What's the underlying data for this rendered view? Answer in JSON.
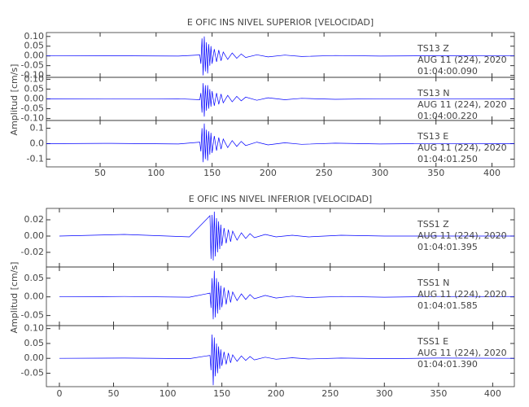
{
  "chart_data": [
    {
      "type": "line",
      "title": "E OFIC INS NIVEL SUPERIOR [VELOCIDAD]",
      "y_label": "Amplitud [cm/s]",
      "xlim": [
        2,
        420
      ],
      "xticks": [
        50,
        100,
        150,
        200,
        250,
        300,
        350,
        400
      ],
      "x": [
        2,
        60,
        120,
        139,
        140,
        141,
        142,
        143,
        144,
        145,
        146,
        147,
        148,
        149,
        150,
        152,
        154,
        156,
        158,
        160,
        164,
        168,
        172,
        176,
        180,
        190,
        200,
        215,
        230,
        260,
        300,
        350,
        420
      ],
      "series": [
        {
          "name": "TS13   Z",
          "date": "AUG 11 (224), 2020",
          "time": "01:04:00.090",
          "color": "#0000ff",
          "ylim": [
            -0.11,
            0.12
          ],
          "yticks": [
            {
              "value": 0.1,
              "label": "0.10"
            },
            0.05,
            {
              "value": 0,
              "label": "0.00"
            },
            -0.05,
            {
              "value": -0.1,
              "label": "-0.10"
            }
          ],
          "values": [
            0,
            0.001,
            -0.001,
            0.005,
            -0.04,
            0.09,
            -0.1,
            0.1,
            -0.08,
            0.07,
            -0.09,
            0.06,
            -0.05,
            0.05,
            -0.04,
            0.035,
            -0.03,
            0.03,
            -0.025,
            0.02,
            -0.018,
            0.015,
            -0.012,
            0.01,
            -0.008,
            0.006,
            -0.005,
            0.004,
            -0.003,
            0.002,
            -0.001,
            0.001,
            0
          ]
        },
        {
          "name": "TS13   N",
          "date": "AUG 11 (224), 2020",
          "time": "01:04:00.220",
          "color": "#0000ff",
          "ylim": [
            -0.11,
            0.11
          ],
          "yticks": [
            {
              "value": 0.1,
              "label": "0.10"
            },
            0.05,
            {
              "value": 0,
              "label": "0.00"
            },
            -0.05,
            {
              "value": -0.1,
              "label": "-0.10"
            }
          ],
          "values": [
            0,
            -0.001,
            0.001,
            -0.004,
            0.03,
            -0.07,
            0.08,
            -0.09,
            0.07,
            -0.06,
            0.07,
            -0.05,
            0.05,
            -0.04,
            0.04,
            -0.035,
            0.03,
            -0.028,
            0.025,
            -0.02,
            0.018,
            -0.015,
            0.013,
            -0.01,
            0.009,
            -0.007,
            0.006,
            -0.004,
            0.003,
            -0.002,
            0.001,
            -0.001,
            0
          ]
        },
        {
          "name": "TS13   E",
          "date": "AUG 11 (224), 2020",
          "time": "01:04:01.250",
          "color": "#0000ff",
          "ylim": [
            -0.15,
            0.15
          ],
          "yticks": [
            0.1,
            {
              "value": 0,
              "label": "0.0"
            },
            -0.1
          ],
          "values": [
            0,
            0.002,
            -0.002,
            0.01,
            -0.05,
            0.1,
            -0.12,
            0.13,
            -0.1,
            0.09,
            -0.11,
            0.08,
            -0.07,
            0.07,
            -0.06,
            0.05,
            -0.045,
            0.04,
            -0.035,
            0.03,
            -0.025,
            0.02,
            -0.018,
            0.015,
            -0.012,
            0.01,
            -0.008,
            0.006,
            -0.004,
            0.003,
            -0.002,
            0.001,
            0
          ]
        }
      ]
    },
    {
      "type": "line",
      "title": "E OFIC INS NIVEL INFERIOR [VELOCIDAD]",
      "y_label": "Amplitud [cm/s]",
      "xlim": [
        -12,
        420
      ],
      "xticks": [
        0,
        50,
        100,
        150,
        200,
        250,
        300,
        350,
        400
      ],
      "x": [
        0,
        60,
        120,
        139,
        140,
        141,
        142,
        143,
        144,
        145,
        146,
        147,
        148,
        149,
        150,
        152,
        154,
        156,
        158,
        160,
        164,
        168,
        172,
        176,
        180,
        190,
        200,
        215,
        230,
        260,
        300,
        350,
        420
      ],
      "series": [
        {
          "name": "TSS1   Z",
          "date": "AUG 11 (224), 2020",
          "time": "01:04:01.395",
          "color": "#0000ff",
          "ylim": [
            -0.038,
            0.034
          ],
          "yticks": [
            0.02,
            {
              "value": 0,
              "label": "0.00"
            },
            -0.02
          ],
          "values": [
            0,
            0.002,
            -0.001,
            0.025,
            -0.028,
            0.026,
            -0.03,
            0.03,
            -0.025,
            0.022,
            -0.02,
            0.018,
            -0.016,
            0.014,
            -0.012,
            0.01,
            -0.009,
            0.008,
            -0.007,
            0.006,
            -0.005,
            0.004,
            -0.003,
            0.003,
            -0.002,
            0.002,
            -0.001,
            0.001,
            -0.001,
            0.001,
            0,
            0,
            0
          ]
        },
        {
          "name": "TSS1   N",
          "date": "AUG 11 (224), 2020",
          "time": "01:04:01.585",
          "color": "#0000ff",
          "ylim": [
            -0.077,
            0.08
          ],
          "yticks": [
            0.05,
            {
              "value": 0,
              "label": "0.00"
            },
            -0.05
          ],
          "values": [
            0,
            0.001,
            -0.001,
            0.01,
            -0.03,
            0.05,
            -0.06,
            0.07,
            -0.055,
            0.05,
            -0.045,
            0.04,
            -0.035,
            0.03,
            -0.028,
            0.025,
            -0.02,
            0.018,
            -0.015,
            0.013,
            -0.01,
            0.008,
            -0.007,
            0.006,
            -0.005,
            0.004,
            -0.003,
            0.002,
            -0.002,
            0.001,
            -0.001,
            0.001,
            0
          ]
        },
        {
          "name": "TSS1   E",
          "date": "AUG 11 (224), 2020",
          "time": "01:04:01.390",
          "color": "#0000ff",
          "ylim": [
            -0.095,
            0.11
          ],
          "yticks": [
            {
              "value": 0.1,
              "label": "0.10"
            },
            0.05,
            {
              "value": 0,
              "label": "0.00"
            },
            -0.05
          ],
          "values": [
            0,
            0.001,
            -0.001,
            0.01,
            -0.04,
            0.08,
            -0.09,
            0.07,
            -0.06,
            0.05,
            -0.05,
            0.04,
            -0.035,
            0.03,
            -0.025,
            0.022,
            -0.02,
            0.018,
            -0.015,
            0.012,
            -0.01,
            0.008,
            -0.007,
            0.006,
            -0.005,
            0.004,
            -0.003,
            0.002,
            -0.002,
            0.001,
            -0.001,
            0.001,
            0
          ]
        }
      ]
    }
  ]
}
